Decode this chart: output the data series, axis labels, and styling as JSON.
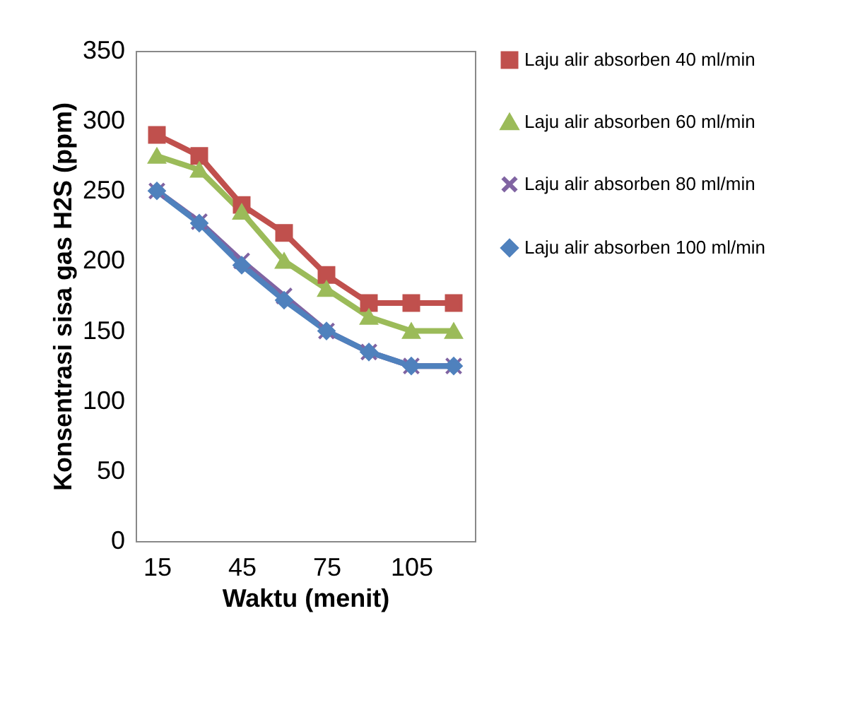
{
  "chart_data": {
    "type": "line",
    "xlabel": "Waktu (menit)",
    "ylabel": "Konsentrasi sisa gas H2S (ppm)",
    "x": [
      15,
      30,
      45,
      60,
      75,
      90,
      105,
      120
    ],
    "xlim": [
      7.5,
      127.5
    ],
    "xticks": [
      15,
      45,
      75,
      105
    ],
    "ylim": [
      0,
      350
    ],
    "yticks": [
      0,
      50,
      100,
      150,
      200,
      250,
      300,
      350
    ],
    "grid": false,
    "legend": "right",
    "series": [
      {
        "name": "Laju alir absorben 40 ml/min",
        "color": "#c0504d",
        "marker": "square",
        "values": [
          290,
          275,
          240,
          220,
          190,
          170,
          170,
          170
        ]
      },
      {
        "name": "Laju alir absorben 60 ml/min",
        "color": "#9bbb59",
        "marker": "triangle",
        "values": [
          275,
          265,
          235,
          200,
          180,
          160,
          150,
          150
        ]
      },
      {
        "name": "Laju alir absorben 80 ml/min",
        "color": "#8064a2",
        "marker": "cross",
        "values": [
          250,
          228,
          200,
          175,
          150,
          135,
          125,
          125
        ]
      },
      {
        "name": "Laju alir absorben 100 ml/min",
        "color": "#4f81bd",
        "marker": "diamond",
        "values": [
          250,
          227,
          197,
          172,
          150,
          135,
          125,
          125
        ]
      }
    ]
  }
}
